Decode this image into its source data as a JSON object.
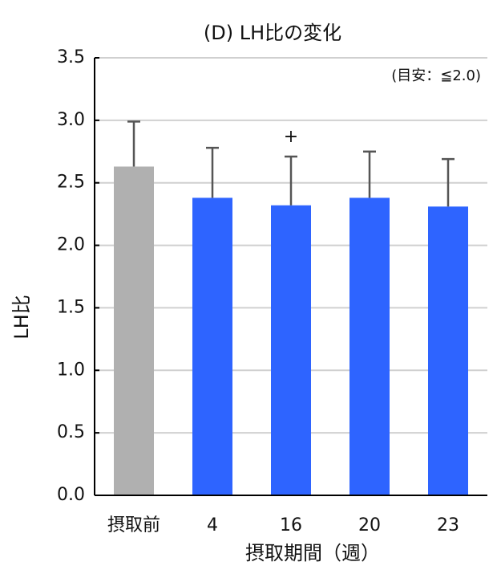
{
  "chart_data": {
    "type": "bar",
    "title": "(D) LH比の変化",
    "ylabel": "LH比",
    "xlabel": "摂取期間（週）",
    "note": "(目安：≦2.0)",
    "categories": [
      "摂取前",
      "4",
      "16",
      "20",
      "23"
    ],
    "values": [
      2.63,
      2.38,
      2.32,
      2.38,
      2.31
    ],
    "errors": [
      0.36,
      0.4,
      0.39,
      0.37,
      0.38
    ],
    "colors": [
      "#b0b0b0",
      "#2e64ff",
      "#2e64ff",
      "#2e64ff",
      "#2e64ff"
    ],
    "markers": [
      null,
      null,
      "+",
      null,
      null
    ],
    "error_color": "#555555",
    "ylim": [
      0,
      3.5
    ],
    "yticks": [
      {
        "value": 0,
        "label": "0.0"
      },
      0.5,
      {
        "value": 1,
        "label": "1.0"
      },
      1.5,
      {
        "value": 2,
        "label": "2.0"
      },
      2.5,
      {
        "value": 3,
        "label": "3.0"
      },
      3.5
    ],
    "grid": true
  }
}
